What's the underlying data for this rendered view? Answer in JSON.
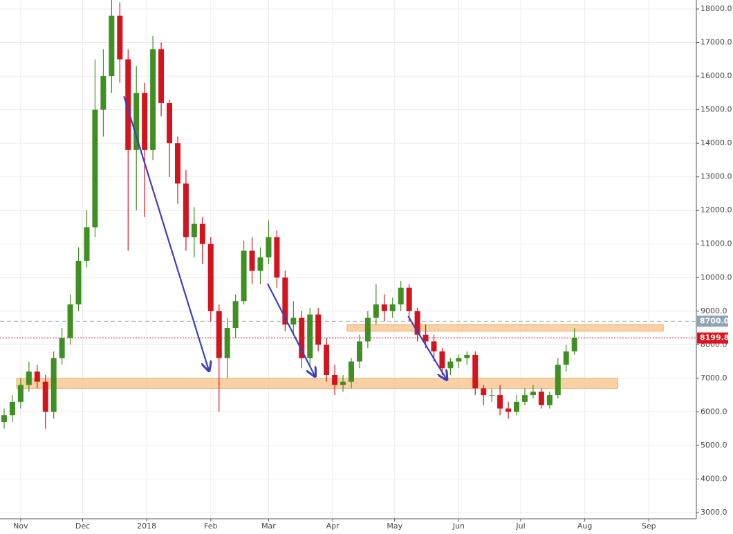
{
  "chart_data": {
    "type": "candlestick",
    "x": [
      -8,
      -4,
      0,
      4,
      8,
      12,
      16,
      20,
      24,
      28,
      32,
      36,
      40,
      44,
      48,
      52,
      56,
      60,
      64,
      68,
      72,
      76,
      80,
      84,
      88,
      92,
      96,
      100,
      104,
      108,
      112,
      116,
      120,
      124,
      128,
      132,
      136,
      140,
      144,
      148,
      152,
      156,
      160,
      164,
      168,
      172,
      176,
      180,
      184,
      188,
      192,
      196,
      200,
      204,
      208,
      212,
      216,
      220,
      224,
      228,
      232,
      236,
      240,
      244,
      248,
      252,
      256,
      260,
      264,
      268
    ],
    "open": [
      5700,
      5900,
      6300,
      6800,
      7200,
      6900,
      6000,
      7600,
      8200,
      9200,
      10500,
      11500,
      15000,
      16000,
      17800,
      16500,
      13800,
      15500,
      13800,
      16800,
      15200,
      14000,
      12800,
      11200,
      11600,
      11000,
      9000,
      7600,
      8500,
      9300,
      10800,
      10200,
      10600,
      11200,
      10000,
      8600,
      8800,
      7600,
      8900,
      8000,
      7100,
      6800,
      6900,
      7500,
      8100,
      8800,
      9200,
      9000,
      9200,
      9700,
      9000,
      8300,
      8100,
      7800,
      7300,
      7500,
      7600,
      7700,
      6700,
      6500,
      6500,
      6100,
      6000,
      6300,
      6500,
      6600,
      6200,
      6500,
      7400,
      7800
    ],
    "high": [
      6100,
      6500,
      7000,
      7500,
      7400,
      7100,
      7800,
      8500,
      9500,
      10900,
      12000,
      16500,
      16800,
      18300,
      18200,
      16800,
      16300,
      15800,
      17200,
      17000,
      15300,
      14200,
      13200,
      12100,
      11800,
      11200,
      9200,
      8800,
      9500,
      11100,
      11200,
      10900,
      11700,
      11400,
      10200,
      9300,
      9000,
      9100,
      9100,
      8200,
      7400,
      7100,
      7600,
      8300,
      9000,
      9800,
      9500,
      9400,
      9900,
      9800,
      9100,
      8600,
      8300,
      7900,
      7600,
      7700,
      7800,
      7800,
      6800,
      6700,
      6800,
      6300,
      6500,
      6700,
      6800,
      6700,
      6600,
      7600,
      8000,
      8500
    ],
    "low": [
      5500,
      5700,
      6100,
      6600,
      6700,
      5500,
      5800,
      7400,
      8000,
      9000,
      10300,
      11200,
      14200,
      15500,
      15800,
      10800,
      12000,
      11800,
      13500,
      14800,
      13000,
      12200,
      10800,
      10600,
      10400,
      8700,
      6000,
      7000,
      8200,
      9200,
      9800,
      9800,
      10400,
      9700,
      8400,
      8300,
      7300,
      7400,
      7800,
      6900,
      6500,
      6600,
      6700,
      7300,
      7900,
      8600,
      8700,
      8800,
      9000,
      8700,
      8100,
      7900,
      7500,
      7100,
      7100,
      7300,
      7400,
      6500,
      6200,
      6300,
      5900,
      5800,
      5900,
      6200,
      6400,
      6100,
      6100,
      6400,
      7200,
      7700
    ],
    "close": [
      5900,
      6300,
      6800,
      7200,
      6900,
      6000,
      7600,
      8200,
      9200,
      10500,
      11500,
      15000,
      16000,
      17800,
      16500,
      13800,
      15500,
      13800,
      16800,
      15200,
      14000,
      12800,
      11200,
      11600,
      11000,
      9000,
      7600,
      8500,
      9300,
      10800,
      10200,
      10600,
      11200,
      10000,
      8600,
      8800,
      7600,
      8900,
      8000,
      7100,
      6800,
      6900,
      7500,
      8100,
      8800,
      9200,
      9000,
      9200,
      9700,
      9000,
      8300,
      8100,
      7800,
      7300,
      7500,
      7600,
      7700,
      6700,
      6500,
      6500,
      6100,
      6000,
      6300,
      6500,
      6600,
      6200,
      6500,
      7400,
      7800,
      8200
    ],
    "up_color": "#3f8f23",
    "down_color": "#d3141f",
    "xlim": [
      -10,
      327
    ],
    "xticks": [
      {
        "value": 0,
        "label": "Nov"
      },
      {
        "value": 30,
        "label": "Dec"
      },
      {
        "value": 61,
        "label": "2018"
      },
      {
        "value": 92,
        "label": "Feb"
      },
      {
        "value": 120,
        "label": "Mar"
      },
      {
        "value": 151,
        "label": "Apr"
      },
      {
        "value": 181,
        "label": "May"
      },
      {
        "value": 212,
        "label": "Jun"
      },
      {
        "value": 242,
        "label": "Jul"
      },
      {
        "value": 273,
        "label": "Aug"
      },
      {
        "value": 304,
        "label": "Sep"
      }
    ],
    "ylim": [
      2815,
      18268
    ],
    "yticks": [
      {
        "value": 3000,
        "label": "3000.0"
      },
      {
        "value": 4000,
        "label": "4000.0"
      },
      {
        "value": 5000,
        "label": "5000.0"
      },
      {
        "value": 6000,
        "label": "6000.0"
      },
      {
        "value": 7000,
        "label": "7000.0"
      },
      {
        "value": 8000,
        "label": "8000.0"
      },
      {
        "value": 9000,
        "label": "9000.0"
      },
      {
        "value": 10000,
        "label": "10000.0"
      },
      {
        "value": 11000,
        "label": "11000.0"
      },
      {
        "value": 12000,
        "label": "12000.0"
      },
      {
        "value": 13000,
        "label": "13000.0"
      },
      {
        "value": 14000,
        "label": "14000.0"
      },
      {
        "value": 15000,
        "label": "15000.0"
      },
      {
        "value": 16000,
        "label": "16000.0"
      },
      {
        "value": 17000,
        "label": "17000.0"
      },
      {
        "value": 18000,
        "label": "18000.0"
      }
    ],
    "grid": true,
    "price_lines": [
      {
        "value": 8700,
        "label": "8700.0",
        "color": "#8fa3b5",
        "style": "dashed"
      },
      {
        "value": 8199.8,
        "label": "8199.8",
        "color": "#e0101c",
        "style": "dotted"
      }
    ],
    "zones": [
      {
        "x": [
          -2,
          289
        ],
        "y": [
          6700,
          7000
        ],
        "color": "#f8c58f"
      },
      {
        "x": [
          158,
          311
        ],
        "y": [
          8400,
          8600
        ],
        "color": "#f8c58f"
      }
    ],
    "arrows": [
      {
        "x": [
          50,
          91
        ],
        "y": [
          15400,
          7250
        ]
      },
      {
        "x": [
          119.5,
          142.3
        ],
        "y": [
          9820,
          7080
        ]
      },
      {
        "x": [
          187.5,
          206
        ],
        "y": [
          8850,
          6980
        ]
      }
    ],
    "arrow_color": "#3a3fc0"
  }
}
